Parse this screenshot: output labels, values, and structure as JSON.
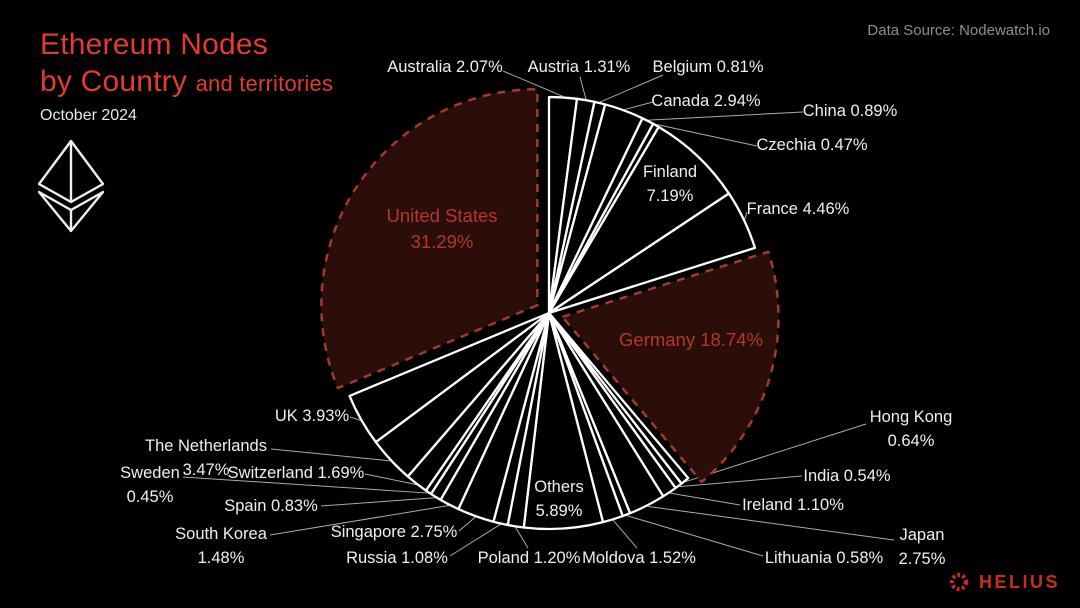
{
  "header": {
    "title_line1": "Ethereum Nodes",
    "title_line2": "by Country",
    "title_suffix": "and territories",
    "subtitle": "October 2024"
  },
  "source": {
    "label": "Data Source: Nodewatch.io"
  },
  "brand": {
    "name": "HELIUS",
    "icon": "helius-burst-icon"
  },
  "icons": {
    "logo": "ethereum-logo"
  },
  "colors": {
    "background": "#000000",
    "title_red": "#e23b2f",
    "highlight_fill": "#2b0e0a",
    "highlight_stroke": "#a23a2e",
    "highlight_text": "#b5362b",
    "slice_fill": "#000000",
    "slice_stroke": "#ffffff",
    "label_text": "#f2efec",
    "leader_line": "#c9c9c9",
    "source_text": "#8f8f8f",
    "brand_red": "#cf2b1c",
    "logo_white": "#efefef"
  },
  "chart_data": {
    "type": "pie",
    "title": "Ethereum Nodes by Country and territories",
    "date": "October 2024",
    "unit": "percent",
    "order": "clockwise from 12 o'clock, alphabetical with Others between Moldova and Poland",
    "legend_position": "direct labels with leader lines",
    "highlighted": [
      "United States",
      "Germany"
    ],
    "slices": [
      {
        "label": "Australia",
        "value": 2.07
      },
      {
        "label": "Austria",
        "value": 1.31
      },
      {
        "label": "Belgium",
        "value": 0.81
      },
      {
        "label": "Canada",
        "value": 2.94
      },
      {
        "label": "China",
        "value": 0.89
      },
      {
        "label": "Czechia",
        "value": 0.47
      },
      {
        "label": "Finland",
        "value": 7.19
      },
      {
        "label": "France",
        "value": 4.46
      },
      {
        "label": "Germany",
        "value": 18.74
      },
      {
        "label": "Hong Kong",
        "value": 0.64
      },
      {
        "label": "India",
        "value": 0.54
      },
      {
        "label": "Ireland",
        "value": 1.1
      },
      {
        "label": "Japan",
        "value": 2.75
      },
      {
        "label": "Lithuania",
        "value": 0.58
      },
      {
        "label": "Moldova",
        "value": 1.52
      },
      {
        "label": "Others",
        "value": 5.89
      },
      {
        "label": "Poland",
        "value": 1.2
      },
      {
        "label": "Russia",
        "value": 1.08
      },
      {
        "label": "Singapore",
        "value": 2.75
      },
      {
        "label": "South Korea",
        "value": 1.48
      },
      {
        "label": "Spain",
        "value": 0.83
      },
      {
        "label": "Sweden",
        "value": 0.45
      },
      {
        "label": "Switzerland",
        "value": 1.69
      },
      {
        "label": "The Netherlands",
        "value": 3.47
      },
      {
        "label": "UK",
        "value": 3.93
      },
      {
        "label": "United States",
        "value": 31.29
      }
    ]
  }
}
